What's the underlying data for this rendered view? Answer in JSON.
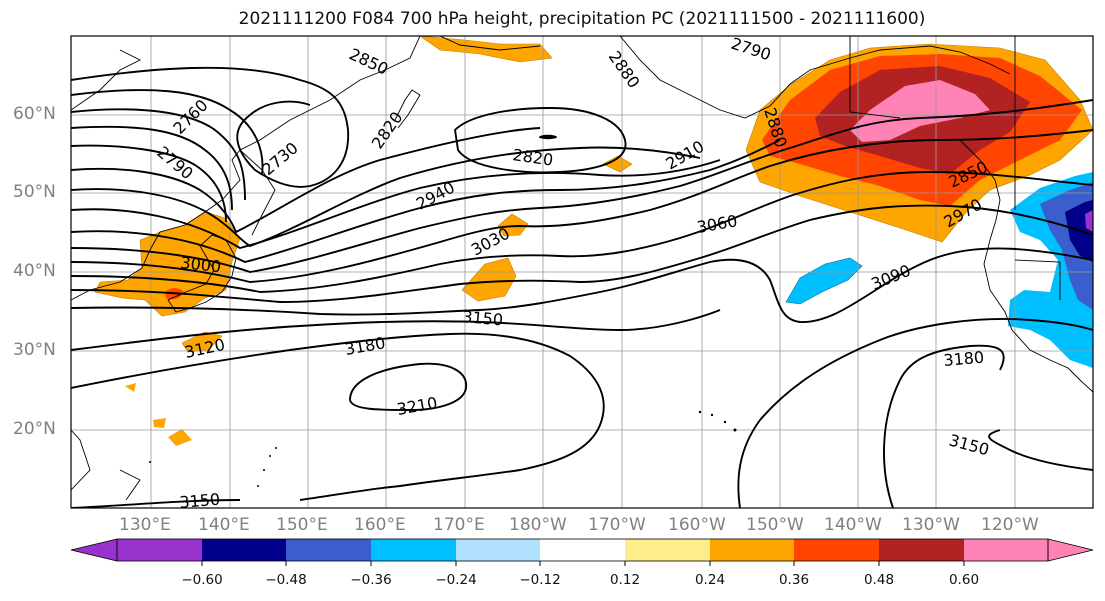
{
  "title": "2021111200 F084 700 hPa height, precipitation PC (2021111500 - 2021111600)",
  "lat_labels": [
    "60°N",
    "50°N",
    "40°N",
    "30°N",
    "20°N"
  ],
  "lon_labels": [
    "130°E",
    "140°E",
    "150°E",
    "160°E",
    "170°E",
    "180°W",
    "170°W",
    "160°W",
    "150°W",
    "140°W",
    "130°W",
    "120°W"
  ],
  "contour_labels": [
    "2850",
    "2880",
    "2790",
    "2760",
    "2730",
    "2790",
    "2820",
    "2820",
    "2910",
    "2880",
    "2940",
    "3060",
    "2850",
    "2970",
    "3030",
    "3000",
    "3090",
    "3150",
    "3120",
    "3180",
    "3180",
    "3210",
    "3150",
    "3150"
  ],
  "colorbar": {
    "ticks": [
      "−0.60",
      "−0.48",
      "−0.36",
      "−0.24",
      "−0.12",
      "0.12",
      "0.24",
      "0.36",
      "0.48",
      "0.60"
    ],
    "colors": [
      "#9932cc",
      "#00008b",
      "#3a5fcd",
      "#00bfff",
      "#b0e2ff",
      "#ffffff",
      "#ffec8b",
      "#ffa500",
      "#ff4500",
      "#b22222",
      "#ff83b4"
    ]
  }
}
